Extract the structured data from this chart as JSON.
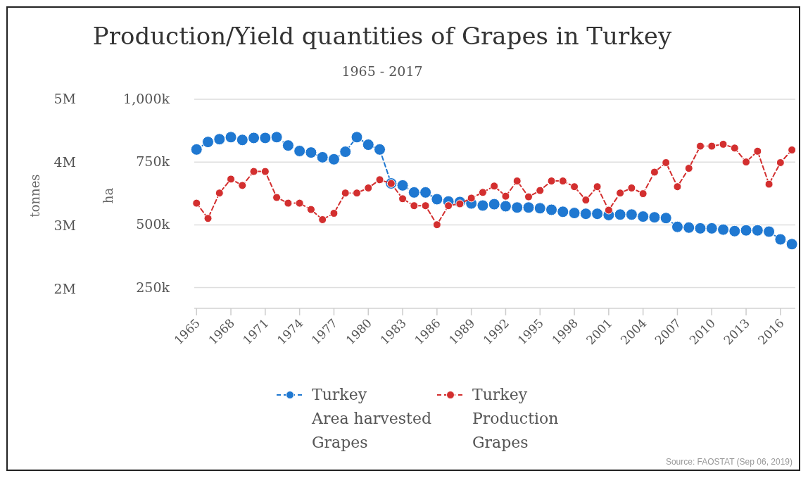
{
  "chart_data": {
    "type": "line",
    "title": "Production/Yield quantities of Grapes in Turkey",
    "subtitle": "1965 - 2017",
    "ylabel": "tonnes",
    "y2label": "ha",
    "x": [
      1965,
      1966,
      1967,
      1968,
      1969,
      1970,
      1971,
      1972,
      1973,
      1974,
      1975,
      1976,
      1977,
      1978,
      1979,
      1980,
      1981,
      1982,
      1983,
      1984,
      1985,
      1986,
      1987,
      1988,
      1989,
      1990,
      1991,
      1992,
      1993,
      1994,
      1995,
      1996,
      1997,
      1998,
      1999,
      2000,
      2001,
      2002,
      2003,
      2004,
      2005,
      2006,
      2007,
      2008,
      2009,
      2010,
      2011,
      2012,
      2013,
      2014,
      2015,
      2016,
      2017
    ],
    "series": [
      {
        "name": "Turkey\nArea harvested\nGrapes",
        "color": "#1f78d1",
        "axis": "y2",
        "values": [
          800000,
          830000,
          841000,
          849000,
          838000,
          846000,
          846000,
          849000,
          816000,
          794000,
          788000,
          769000,
          761000,
          791000,
          849000,
          819000,
          800000,
          665000,
          657000,
          629000,
          629000,
          602000,
          593000,
          591000,
          585000,
          577000,
          582000,
          574000,
          569000,
          569000,
          566000,
          560000,
          552000,
          547000,
          544000,
          544000,
          539000,
          541000,
          541000,
          533000,
          530000,
          527000,
          492000,
          489000,
          486000,
          486000,
          481000,
          475000,
          478000,
          478000,
          473000,
          442000,
          423000
        ]
      },
      {
        "name": "Turkey\nProduction\nGrapes",
        "color": "#d32f2f",
        "values": [
          3360000,
          3120000,
          3520000,
          3740000,
          3640000,
          3860000,
          3860000,
          3450000,
          3360000,
          3360000,
          3260000,
          3100000,
          3200000,
          3520000,
          3520000,
          3600000,
          3730000,
          3670000,
          3430000,
          3320000,
          3320000,
          3020000,
          3320000,
          3350000,
          3440000,
          3530000,
          3630000,
          3470000,
          3710000,
          3460000,
          3560000,
          3710000,
          3710000,
          3620000,
          3410000,
          3620000,
          3250000,
          3520000,
          3600000,
          3510000,
          3850000,
          4000000,
          3620000,
          3910000,
          4260000,
          4260000,
          4290000,
          4230000,
          4010000,
          4180000,
          3660000,
          4000000,
          4200000
        ]
      }
    ],
    "xlim": [
      1964.8,
      2017.3
    ],
    "xticks": [
      1965,
      1968,
      1971,
      1974,
      1977,
      1980,
      1983,
      1986,
      1989,
      1992,
      1995,
      1998,
      2001,
      2004,
      2007,
      2010,
      2013,
      2016
    ],
    "ylim": [
      1700000,
      5000000
    ],
    "yticks": [
      {
        "value": 2000000,
        "label": "2M"
      },
      {
        "value": 3000000,
        "label": "3M"
      },
      {
        "value": 4000000,
        "label": "4M"
      },
      {
        "value": 5000000,
        "label": "5M"
      }
    ],
    "y2lim": [
      167500,
      1000000
    ],
    "y2ticks": [
      {
        "value": 250000,
        "label": "250k"
      },
      {
        "value": 500000,
        "label": "500k"
      },
      {
        "value": 750000,
        "label": "750k"
      },
      {
        "value": 1000000,
        "label": "1,000k"
      }
    ],
    "grid": "y",
    "legend": "bottom",
    "marker": "circle",
    "line_style": "dashed",
    "annotations": [
      "Source: FAOSTAT (Sep 06, 2019)"
    ]
  }
}
